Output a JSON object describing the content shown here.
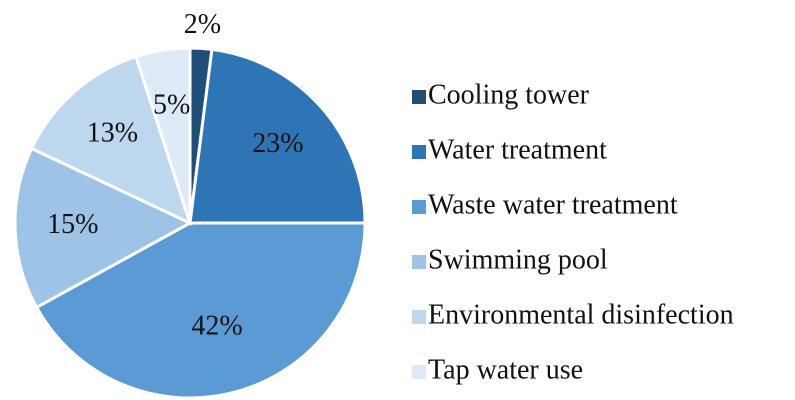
{
  "chart_data": {
    "type": "pie",
    "categories": [
      "Cooling tower",
      "Water treatment",
      "Waste water treatment",
      "Swimming pool",
      "Environmental disinfection",
      "Tap water use"
    ],
    "values": [
      2,
      23,
      42,
      15,
      13,
      5
    ],
    "value_labels": [
      "2%",
      "23%",
      "42%",
      "15%",
      "13%",
      "5%"
    ],
    "colors": [
      "#1f4e79",
      "#2e75b6",
      "#5b9bd5",
      "#9dc3e6",
      "#bdd7ee",
      "#deebf7"
    ],
    "legend": "right"
  }
}
